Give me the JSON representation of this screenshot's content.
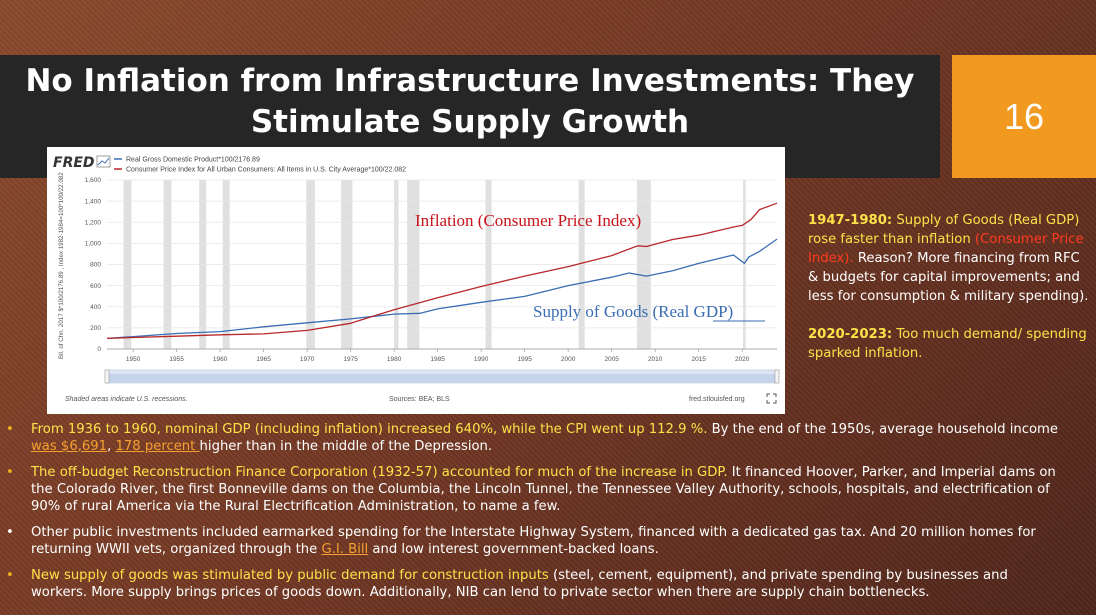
{
  "slide": {
    "title_line1": "No Inflation from Infrastructure Investments: They",
    "title_line2": "Stimulate Supply Growth",
    "number": "16"
  },
  "chart_data": {
    "type": "line",
    "brand": "FRED",
    "legend": [
      "Real Gross Domestic Product*100/2176.89",
      "Consumer Price Index for All Urban Consumers: All Items in U.S. City Average*100/22.082"
    ],
    "ylabel": "Bil. of Chn. 2017 $*100/2176.89 , Index 1982-1984=100*100/22.082",
    "x_ticks": [
      "1950",
      "1955",
      "1960",
      "1965",
      "1970",
      "1975",
      "1980",
      "1985",
      "1990",
      "1995",
      "2000",
      "2005",
      "2010",
      "2015",
      "2020"
    ],
    "y_ticks": [
      "0",
      "200",
      "400",
      "600",
      "800",
      "1,000",
      "1,200",
      "1,400",
      "1,600"
    ],
    "xlim": [
      1947,
      2024
    ],
    "ylim": [
      0,
      1600
    ],
    "recessions": [
      [
        1948.9,
        1949.8
      ],
      [
        1953.5,
        1954.4
      ],
      [
        1957.6,
        1958.4
      ],
      [
        1960.3,
        1961.1
      ],
      [
        1969.9,
        1970.9
      ],
      [
        1973.9,
        1975.2
      ],
      [
        1980.0,
        1980.5
      ],
      [
        1981.5,
        1982.9
      ],
      [
        1990.5,
        1991.2
      ],
      [
        2001.2,
        2001.9
      ],
      [
        2007.9,
        2009.5
      ],
      [
        2020.1,
        2020.4
      ]
    ],
    "series": [
      {
        "name": "Real Gross Domestic Product*100/2176.89",
        "color": "#3a6db4",
        "x": [
          1947,
          1950,
          1955,
          1960,
          1965,
          1970,
          1975,
          1980,
          1983,
          1985,
          1990,
          1995,
          2000,
          2005,
          2007,
          2009,
          2012,
          2015,
          2019,
          2020.25,
          2020.75,
          2022,
          2024
        ],
        "y": [
          100,
          117,
          147,
          165,
          210,
          248,
          285,
          330,
          338,
          380,
          442,
          498,
          600,
          680,
          720,
          690,
          740,
          810,
          890,
          810,
          870,
          925,
          1040
        ]
      },
      {
        "name": "Consumer Price Index for All Urban Consumers: All Items in U.S. City Average*100/22.082",
        "color": "#b8282a",
        "x": [
          1947,
          1950,
          1955,
          1960,
          1965,
          1970,
          1975,
          1980,
          1985,
          1990,
          1995,
          2000,
          2005,
          2008,
          2009,
          2012,
          2015,
          2019,
          2020,
          2021,
          2022,
          2024
        ],
        "y": [
          100,
          109,
          121,
          134,
          143,
          176,
          243,
          372,
          486,
          592,
          690,
          780,
          884,
          977,
          970,
          1037,
          1077,
          1155,
          1170,
          1225,
          1320,
          1380
        ]
      }
    ],
    "annotations": [
      "Inflation (Consumer Price Index)",
      "Supply of Goods (Real GDP)"
    ],
    "footer_left": "Shaded areas indicate U.S. recessions.",
    "footer_mid": "Sources: BEA; BLS",
    "footer_right": "fred.stlouisfed.org",
    "colors": {
      "gdp": "#3a6db4",
      "cpi": "#b8282a",
      "recession": "#e0e0e0"
    }
  },
  "sidebar": {
    "p1_bold": "1947-1980:",
    "p1_yellow": " Supply of Goods (Real GDP) rose faster than inflation",
    "p1_red": "(Consumer Price Index).",
    "p1_white": "  Reason? More financing from RFC & budgets for capital improvements; and less for consumption & military spending).",
    "p2_bold": "2020-2023:",
    "p2_yellow": " Too much demand/ spending sparked inflation."
  },
  "bullets": {
    "b1_yellow": "From 1936 to 1960, nominal GDP (including inflation) increased 640%, while the CPI went up 112.9 %.",
    "b1_white1": " By the end of the 1950s, average household income ",
    "b1_link1": "was $6,691",
    "b1_comma": ", ",
    "b1_link2": "178 percent ",
    "b1_white2": "higher than in the middle of the Depression.",
    "b2_yellow": "The off-budget Reconstruction Finance Corporation (1932-57) accounted for much of the increase in GDP.",
    "b2_white": " It financed Hoover, Parker, and Imperial dams on the Colorado River, the first Bonneville dams on the Columbia, the Lincoln Tunnel, the Tennessee Valley Authority, schools, hospitals, and electrification of 90% of rural America via the Rural Electrification Administration, to name a few.",
    "b3_white1": "Other public investments included earmarked spending for the Interstate Highway System, financed with a dedicated gas tax. And 20 million homes for returning WWII vets, organized through the ",
    "b3_link": "G.I. Bill",
    "b3_white2": " and low interest government-backed loans.",
    "b4_yellow": "New supply of goods was stimulated by public demand for construction inputs",
    "b4_white": " (steel, cement, equipment), and private spending by businesses and workers. More supply brings prices of goods down. Additionally, NIB can lend to private sector when there are supply chain bottlenecks."
  }
}
